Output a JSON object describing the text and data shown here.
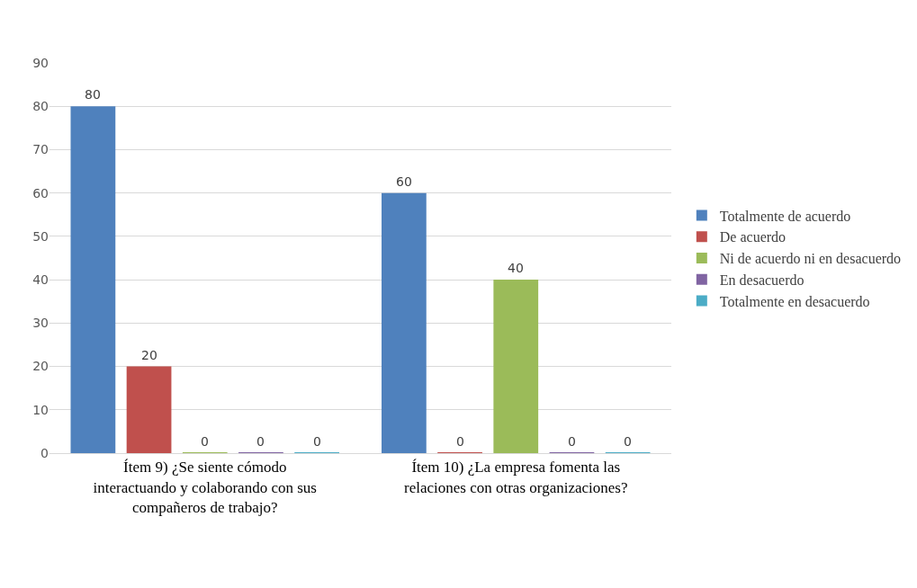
{
  "chart_data": {
    "type": "bar",
    "categories": [
      "Ítem 9) ¿Se siente cómodo interactuando y colaborando con sus compañeros de trabajo?",
      "Ítem 10) ¿La empresa fomenta las relaciones con otras organizaciones?"
    ],
    "series": [
      {
        "name": "Totalmente de acuerdo",
        "color": "#4f81bd",
        "values": [
          80,
          60
        ]
      },
      {
        "name": "De acuerdo",
        "color": "#c0504d",
        "values": [
          20,
          0
        ]
      },
      {
        "name": "Ni de acuerdo ni en desacuerdo",
        "color": "#9bbb59",
        "values": [
          0,
          40
        ]
      },
      {
        "name": "En desacuerdo",
        "color": "#8064a2",
        "values": [
          0,
          0
        ]
      },
      {
        "name": "Totalmente en desacuerdo",
        "color": "#4bacc6",
        "values": [
          0,
          0
        ]
      }
    ],
    "ylim": [
      0,
      90
    ],
    "yticks": [
      0,
      10,
      20,
      30,
      40,
      50,
      60,
      70,
      80,
      90
    ],
    "grid": "y",
    "legend": "right",
    "data_labels": true
  }
}
